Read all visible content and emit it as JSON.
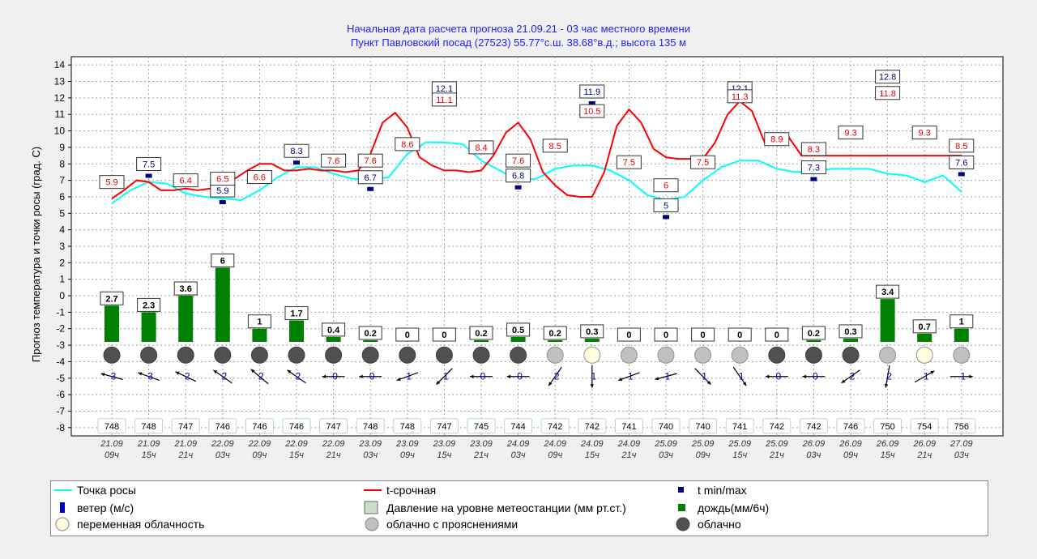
{
  "header": {
    "line1": "Начальная дата расчета прогноза 21.09.21 - 03 час местного времени",
    "line2": "Пункт  Павловский посад (27523)   55.77°с.ш.  38.68°в.д.; высота 135 м"
  },
  "chart_data": {
    "type": "line",
    "ylabel": "Прогноз температура и точки росы (град. С)",
    "ylim": [
      -8.5,
      14.5
    ],
    "yticks": [
      14,
      13,
      12,
      11,
      10,
      9,
      8,
      7,
      6,
      5,
      4,
      3,
      2,
      1,
      0,
      -1,
      -2,
      -3,
      -4,
      -5,
      -6,
      -7,
      -8
    ],
    "grid": true,
    "x_date": [
      "21.09",
      "21.09",
      "21.09",
      "22.09",
      "22.09",
      "22.09",
      "22.09",
      "23.09",
      "23.09",
      "23.09",
      "23.09",
      "24.09",
      "24.09",
      "24.09",
      "24.09",
      "25.09",
      "25.09",
      "25.09",
      "25.09",
      "26.09",
      "26.09",
      "26.09",
      "26.09",
      "27.09"
    ],
    "x_hour": [
      "09ч",
      "15ч",
      "21ч",
      "03ч",
      "09ч",
      "15ч",
      "21ч",
      "03ч",
      "09ч",
      "15ч",
      "21ч",
      "03ч",
      "09ч",
      "15ч",
      "21ч",
      "03ч",
      "09ч",
      "15ч",
      "21ч",
      "03ч",
      "09ч",
      "15ч",
      "21ч",
      "03ч"
    ],
    "temp_x": [
      0,
      0.33,
      0.67,
      1,
      1.33,
      1.67,
      2,
      2.33,
      2.67,
      3,
      3.33,
      3.67,
      4,
      4.33,
      4.67,
      5,
      5.33,
      5.67,
      6,
      6.33,
      6.67,
      7,
      7.33,
      7.67,
      8,
      8.33,
      8.67,
      9,
      9.33,
      9.67,
      10,
      10.33,
      10.67,
      11,
      11.33,
      11.67,
      12,
      12.33,
      12.67,
      13,
      13.33,
      13.67,
      14,
      14.33,
      14.67,
      15,
      15.33,
      15.67,
      16,
      16.33,
      16.67,
      17,
      17.33,
      17.67,
      18,
      18.33,
      18.67,
      19,
      19.33,
      19.67,
      20,
      20.33,
      20.67,
      21,
      21.33,
      21.67,
      22,
      22.33,
      22.67,
      23
    ],
    "temp_y": [
      5.9,
      6.4,
      7.0,
      6.9,
      6.4,
      6.4,
      6.5,
      6.4,
      6.5,
      6.6,
      7.1,
      7.6,
      8.0,
      8.0,
      7.6,
      7.6,
      7.7,
      7.6,
      7.6,
      7.5,
      7.6,
      8.6,
      10.5,
      11.1,
      10.2,
      8.4,
      7.9,
      7.6,
      7.6,
      7.5,
      7.6,
      8.5,
      9.9,
      10.5,
      9.5,
      7.5,
      6.7,
      6.1,
      6.0,
      6.0,
      7.5,
      10.3,
      11.3,
      10.5,
      8.9,
      8.4,
      8.3,
      8.3,
      8.3,
      9.3,
      11.0,
      11.8,
      11.2,
      9.3,
      9.5,
      9.6,
      8.5,
      8.5,
      8.5,
      8.5,
      8.5,
      8.5,
      8.5,
      8.5,
      8.5,
      8.5,
      8.5,
      8.5,
      8.5,
      8.5
    ],
    "dew_x": [
      0,
      0.5,
      1,
      1.5,
      2,
      2.5,
      3,
      3.5,
      4,
      4.5,
      5,
      5.5,
      6,
      6.5,
      7,
      7.5,
      8,
      8.5,
      9,
      9.5,
      10,
      10.5,
      11,
      11.5,
      12,
      12.5,
      13,
      13.5,
      14,
      14.5,
      15,
      15.5,
      16,
      16.5,
      17,
      17.5,
      18,
      18.5,
      19,
      19.5,
      20,
      20.5,
      21,
      21.5,
      22,
      22.5,
      23
    ],
    "dew_y": [
      5.6,
      6.4,
      6.9,
      6.8,
      6.2,
      6.0,
      5.9,
      5.8,
      6.4,
      7.2,
      7.8,
      7.8,
      7.4,
      7.1,
      7.0,
      7.2,
      8.6,
      9.3,
      9.3,
      9.2,
      8.2,
      7.6,
      7.0,
      7.1,
      7.7,
      7.9,
      7.9,
      7.6,
      7.0,
      6.1,
      5.8,
      6.0,
      7.0,
      7.8,
      8.2,
      8.2,
      7.7,
      7.5,
      7.6,
      7.7,
      7.7,
      7.7,
      7.4,
      7.3,
      6.9,
      7.3,
      6.3
    ],
    "temp_labels": [
      {
        "i": 0,
        "v": "5.9",
        "y": 6.9
      },
      {
        "i": 2,
        "v": "6.4",
        "y": 7.0
      },
      {
        "i": 3,
        "v": "6.5",
        "y": 7.1
      },
      {
        "i": 4,
        "v": "6.6",
        "y": 7.2
      },
      {
        "i": 6,
        "v": "7.6",
        "y": 8.2
      },
      {
        "i": 7,
        "v": "7.6",
        "y": 8.2
      },
      {
        "i": 8,
        "v": "8.6",
        "y": 9.2
      },
      {
        "i": 9,
        "v": "11.1",
        "y": 11.9
      },
      {
        "i": 10,
        "v": "8.4",
        "y": 9.0
      },
      {
        "i": 11,
        "v": "7.6",
        "y": 8.2
      },
      {
        "i": 12,
        "v": "8.5",
        "y": 9.1
      },
      {
        "i": 13,
        "v": "10.5",
        "y": 11.2
      },
      {
        "i": 14,
        "v": "7.5",
        "y": 8.1
      },
      {
        "i": 15,
        "v": "6",
        "y": 6.7
      },
      {
        "i": 16,
        "v": "7.5",
        "y": 8.1
      },
      {
        "i": 17,
        "v": "11.3",
        "y": 12.1
      },
      {
        "i": 18,
        "v": "8.9",
        "y": 9.5
      },
      {
        "i": 19,
        "v": "8.3",
        "y": 8.9
      },
      {
        "i": 20,
        "v": "9.3",
        "y": 9.9
      },
      {
        "i": 21,
        "v": "11.8",
        "y": 12.3
      },
      {
        "i": 22,
        "v": "9.3",
        "y": 9.9
      },
      {
        "i": 23,
        "v": "8.5",
        "y": 9.1
      }
    ],
    "minmax_labels": [
      {
        "i": 1,
        "v": "7.5",
        "y": 7.3
      },
      {
        "i": 3,
        "v": "5.9",
        "y": 5.7
      },
      {
        "i": 5,
        "v": "8.3",
        "y": 8.1
      },
      {
        "i": 7,
        "v": "6.7",
        "y": 6.5
      },
      {
        "i": 9,
        "v": "12.1",
        "y": 11.9
      },
      {
        "i": 11,
        "v": "6.8",
        "y": 6.6
      },
      {
        "i": 13,
        "v": "11.9",
        "y": 11.7
      },
      {
        "i": 15,
        "v": "5",
        "y": 4.8
      },
      {
        "i": 17,
        "v": "12.1",
        "y": 11.9
      },
      {
        "i": 19,
        "v": "7.3",
        "y": 7.1
      },
      {
        "i": 21,
        "v": "12.8",
        "y": 12.6
      },
      {
        "i": 23,
        "v": "7.6",
        "y": 7.4
      }
    ],
    "rain": [
      "2.7",
      "2.3",
      "3.6",
      "6",
      "1",
      "1.7",
      "0.4",
      "0.2",
      "0",
      "0",
      "0.2",
      "0.5",
      "0.2",
      "0.3",
      "0",
      "0",
      "0",
      "0",
      "0",
      "0.2",
      "0.3",
      "3.4",
      "0.7",
      "1"
    ],
    "rain_bar_top": [
      -0.6,
      -1.0,
      0.0,
      1.7,
      -2.0,
      -1.5,
      -2.5,
      -2.7,
      -2.8,
      -2.8,
      -2.7,
      -2.5,
      -2.7,
      -2.6,
      -2.8,
      -2.8,
      -2.8,
      -2.8,
      -2.8,
      -2.7,
      -2.6,
      -0.2,
      -2.3,
      -2.0
    ],
    "cloud": [
      "o",
      "o",
      "o",
      "o",
      "o",
      "o",
      "o",
      "o",
      "o",
      "o",
      "o",
      "o",
      "c",
      "p",
      "c",
      "c",
      "c",
      "c",
      "o",
      "o",
      "o",
      "c",
      "p",
      "c"
    ],
    "wind_speed": [
      "3",
      "3",
      "2",
      "2",
      "2",
      "2",
      "0",
      "0",
      "1",
      "1",
      "0",
      "0",
      "2",
      "1",
      "1",
      "1",
      "1",
      "1",
      "0",
      "0",
      "2",
      "2",
      "1",
      "1"
    ],
    "wind_dir": [
      195,
      200,
      205,
      215,
      220,
      215,
      180,
      180,
      160,
      135,
      180,
      180,
      125,
      90,
      160,
      165,
      45,
      55,
      180,
      180,
      145,
      100,
      330,
      0
    ],
    "pressure": [
      "748",
      "748",
      "747",
      "746",
      "746",
      "746",
      "747",
      "748",
      "748",
      "747",
      "745",
      "744",
      "742",
      "742",
      "741",
      "740",
      "740",
      "741",
      "742",
      "742",
      "746",
      "750",
      "754",
      "756"
    ],
    "colors": {
      "temp": "#ff0000",
      "dew": "#00ffff",
      "rain": "#008000",
      "overcast": "#505050",
      "partly": "#c0c0c0",
      "variable": "#ffffe0",
      "wind": "#0000c0",
      "minmax": "#000080"
    }
  },
  "legend": {
    "dew": "Точка росы",
    "temp": "t-срочная",
    "minmax": "t min/max",
    "wind": "ветер (м/с)",
    "pressure": "Давление на уровне метеостанции (мм рт.ст.)",
    "rain": "дождь(мм/6ч)",
    "variable": "переменная облачность",
    "partly": "облачно с прояснениями",
    "overcast": "облачно"
  }
}
